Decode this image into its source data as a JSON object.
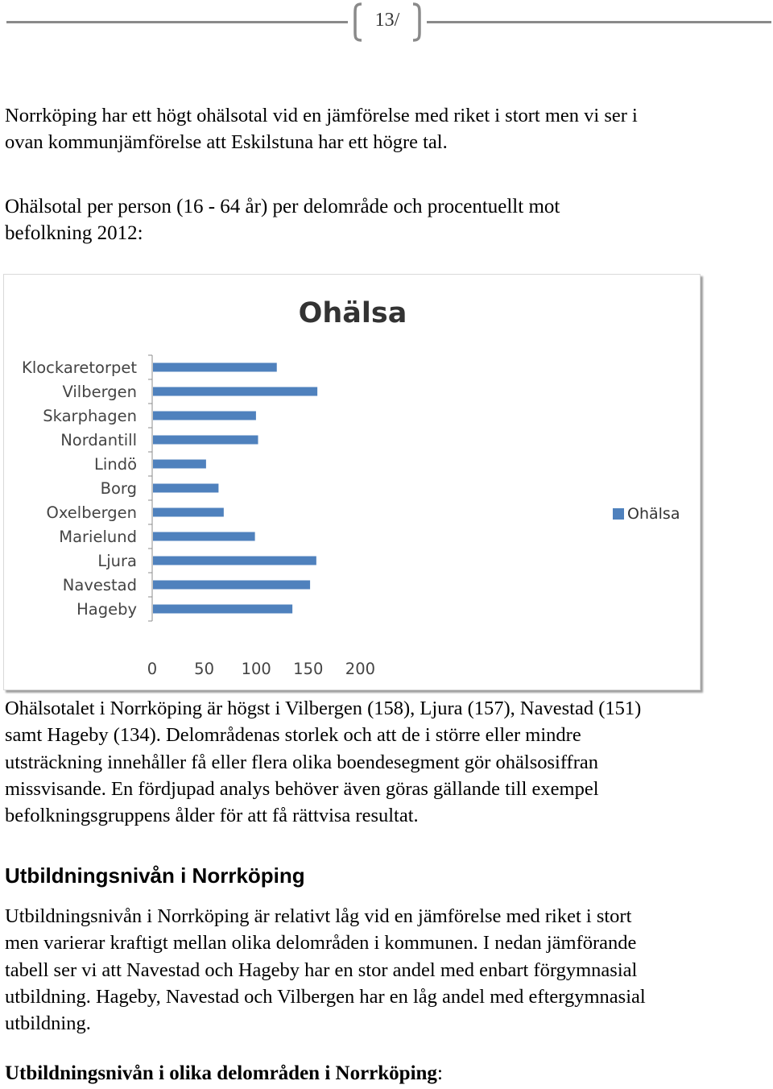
{
  "header": {
    "page_number": "13/"
  },
  "intro": {
    "line1": "Norrköping har ett högt ohälsotal vid en jämförelse med riket i stort men vi ser i",
    "line2": "ovan kommunjämförelse att Eskilstuna har ett högre tal."
  },
  "section_title": {
    "line1": "Ohälsotal per person (16 - 64 år) per delområde och procentuellt mot",
    "line2": "befolkning 2012:"
  },
  "chart_data": {
    "type": "bar",
    "orientation": "horizontal",
    "title": "Ohälsa",
    "categories": [
      "Klockaretorpet",
      "Vilbergen",
      "Skarphagen",
      "Nordantill",
      "Lindö",
      "Borg",
      "Oxelbergen",
      "Marielund",
      "Ljura",
      "Navestad",
      "Hageby"
    ],
    "series": [
      {
        "name": "Ohälsa",
        "values": [
          119,
          158,
          99,
          101,
          51,
          63,
          68,
          98,
          157,
          151,
          134
        ]
      }
    ],
    "xlim": [
      0,
      200
    ],
    "xticks": [
      "0",
      "50",
      "100",
      "150",
      "200"
    ],
    "legend_position": "right",
    "bar_color": "#4f81bd",
    "grid": false
  },
  "analysis": {
    "line1": "Ohälsotalet i Norrköping är högst i Vilbergen (158), Ljura (157), Navestad (151)",
    "line2": "samt Hageby (134). Delområdenas storlek och att de i större eller mindre",
    "line3": "utsträckning innehåller få eller flera olika boendesegment gör ohälsosiffran",
    "line4": "missvisande. En fördjupad analys behöver även göras gällande till exempel",
    "line5": "befolkningsgruppens ålder för att få rättvisa resultat."
  },
  "education_heading": "Utbildningsnivån i Norrköping",
  "education": {
    "line1": "Utbildningsnivån i Norrköping är relativt låg vid en jämförelse med riket i stort",
    "line2": "men varierar kraftigt mellan olika delområden i kommunen. I nedan jämförande",
    "line3": "tabell ser vi att Navestad och Hageby har en stor andel med enbart förgymnasial",
    "line4": "utbildning. Hageby, Navestad och Vilbergen har en låg andel med eftergymnasial",
    "line5": "utbildning."
  },
  "footer_heading": {
    "bold": "Utbildningsnivån i olika delområden i Norrköping",
    "colon": ":"
  }
}
